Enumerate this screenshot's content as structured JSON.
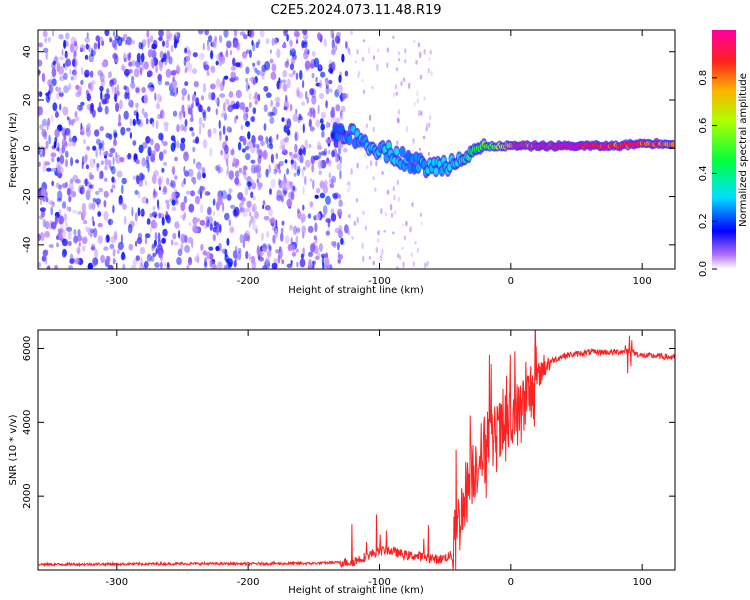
{
  "title": "C2E5.2024.073.11.48.R19",
  "chart_data": [
    {
      "type": "heatmap",
      "xlabel": "Height of straight line (km)",
      "ylabel": "Frequency (Hz)",
      "xlim": [
        -360,
        125
      ],
      "ylim": [
        -50,
        49
      ],
      "xticks": [
        -300,
        -200,
        -100,
        0,
        100
      ],
      "yticks": [
        -40,
        -20,
        0,
        20,
        40
      ],
      "colorbar": {
        "label": "Normalized spectral amplitude",
        "range": [
          0,
          1
        ],
        "ticks": [
          0.0,
          0.2,
          0.4,
          0.6,
          0.8
        ],
        "colormap": "rainbow (white-violet-blue-cyan-green-yellow-red-magenta)"
      },
      "noise_region": {
        "x_range": [
          -360,
          -125
        ],
        "peak_amplitude": 0.15
      },
      "ridge": [
        {
          "x": -135,
          "y": 8,
          "amplitude": 0.2
        },
        {
          "x": -120,
          "y": 5,
          "amplitude": 0.28
        },
        {
          "x": -105,
          "y": 1,
          "amplitude": 0.3
        },
        {
          "x": -90,
          "y": -2,
          "amplitude": 0.3
        },
        {
          "x": -75,
          "y": -6,
          "amplitude": 0.25
        },
        {
          "x": -60,
          "y": -8,
          "amplitude": 0.28
        },
        {
          "x": -45,
          "y": -6,
          "amplitude": 0.3
        },
        {
          "x": -35,
          "y": -2,
          "amplitude": 0.35
        },
        {
          "x": -25,
          "y": 0,
          "amplitude": 0.45
        },
        {
          "x": -10,
          "y": 1,
          "amplitude": 0.6
        },
        {
          "x": 0,
          "y": 1,
          "amplitude": 0.8
        },
        {
          "x": 20,
          "y": 1,
          "amplitude": 0.95
        },
        {
          "x": 50,
          "y": 1,
          "amplitude": 1.0
        },
        {
          "x": 80,
          "y": 1,
          "amplitude": 0.85
        },
        {
          "x": 100,
          "y": 2,
          "amplitude": 0.9
        },
        {
          "x": 125,
          "y": 2,
          "amplitude": 0.75
        }
      ]
    },
    {
      "type": "line",
      "xlabel": "Height of straight line (km)",
      "ylabel": "SNR (10 * v/v)",
      "xlim": [
        -360,
        125
      ],
      "ylim": [
        0,
        6500
      ],
      "xticks": [
        -300,
        -200,
        -100,
        0,
        100
      ],
      "yticks": [
        2000,
        4000,
        6000
      ],
      "color": "#ff2020",
      "series": [
        {
          "x": [
            -360,
            -300,
            -250,
            -200,
            -150,
            -120,
            -105,
            -95,
            -80,
            -65,
            -55,
            -45,
            -40,
            -35,
            -30,
            -25,
            -20,
            -15,
            -10,
            -5,
            0,
            5,
            10,
            15,
            20,
            25,
            30,
            40,
            50,
            60,
            70,
            80,
            90,
            100,
            110,
            125
          ],
          "y": [
            150,
            160,
            170,
            170,
            180,
            220,
            450,
            550,
            400,
            350,
            280,
            400,
            1200,
            2000,
            2600,
            3000,
            3200,
            3500,
            3600,
            3800,
            4000,
            4200,
            4400,
            4800,
            5200,
            5500,
            5650,
            5800,
            5850,
            5900,
            5900,
            5900,
            5950,
            5800,
            5800,
            5750
          ]
        }
      ]
    }
  ]
}
